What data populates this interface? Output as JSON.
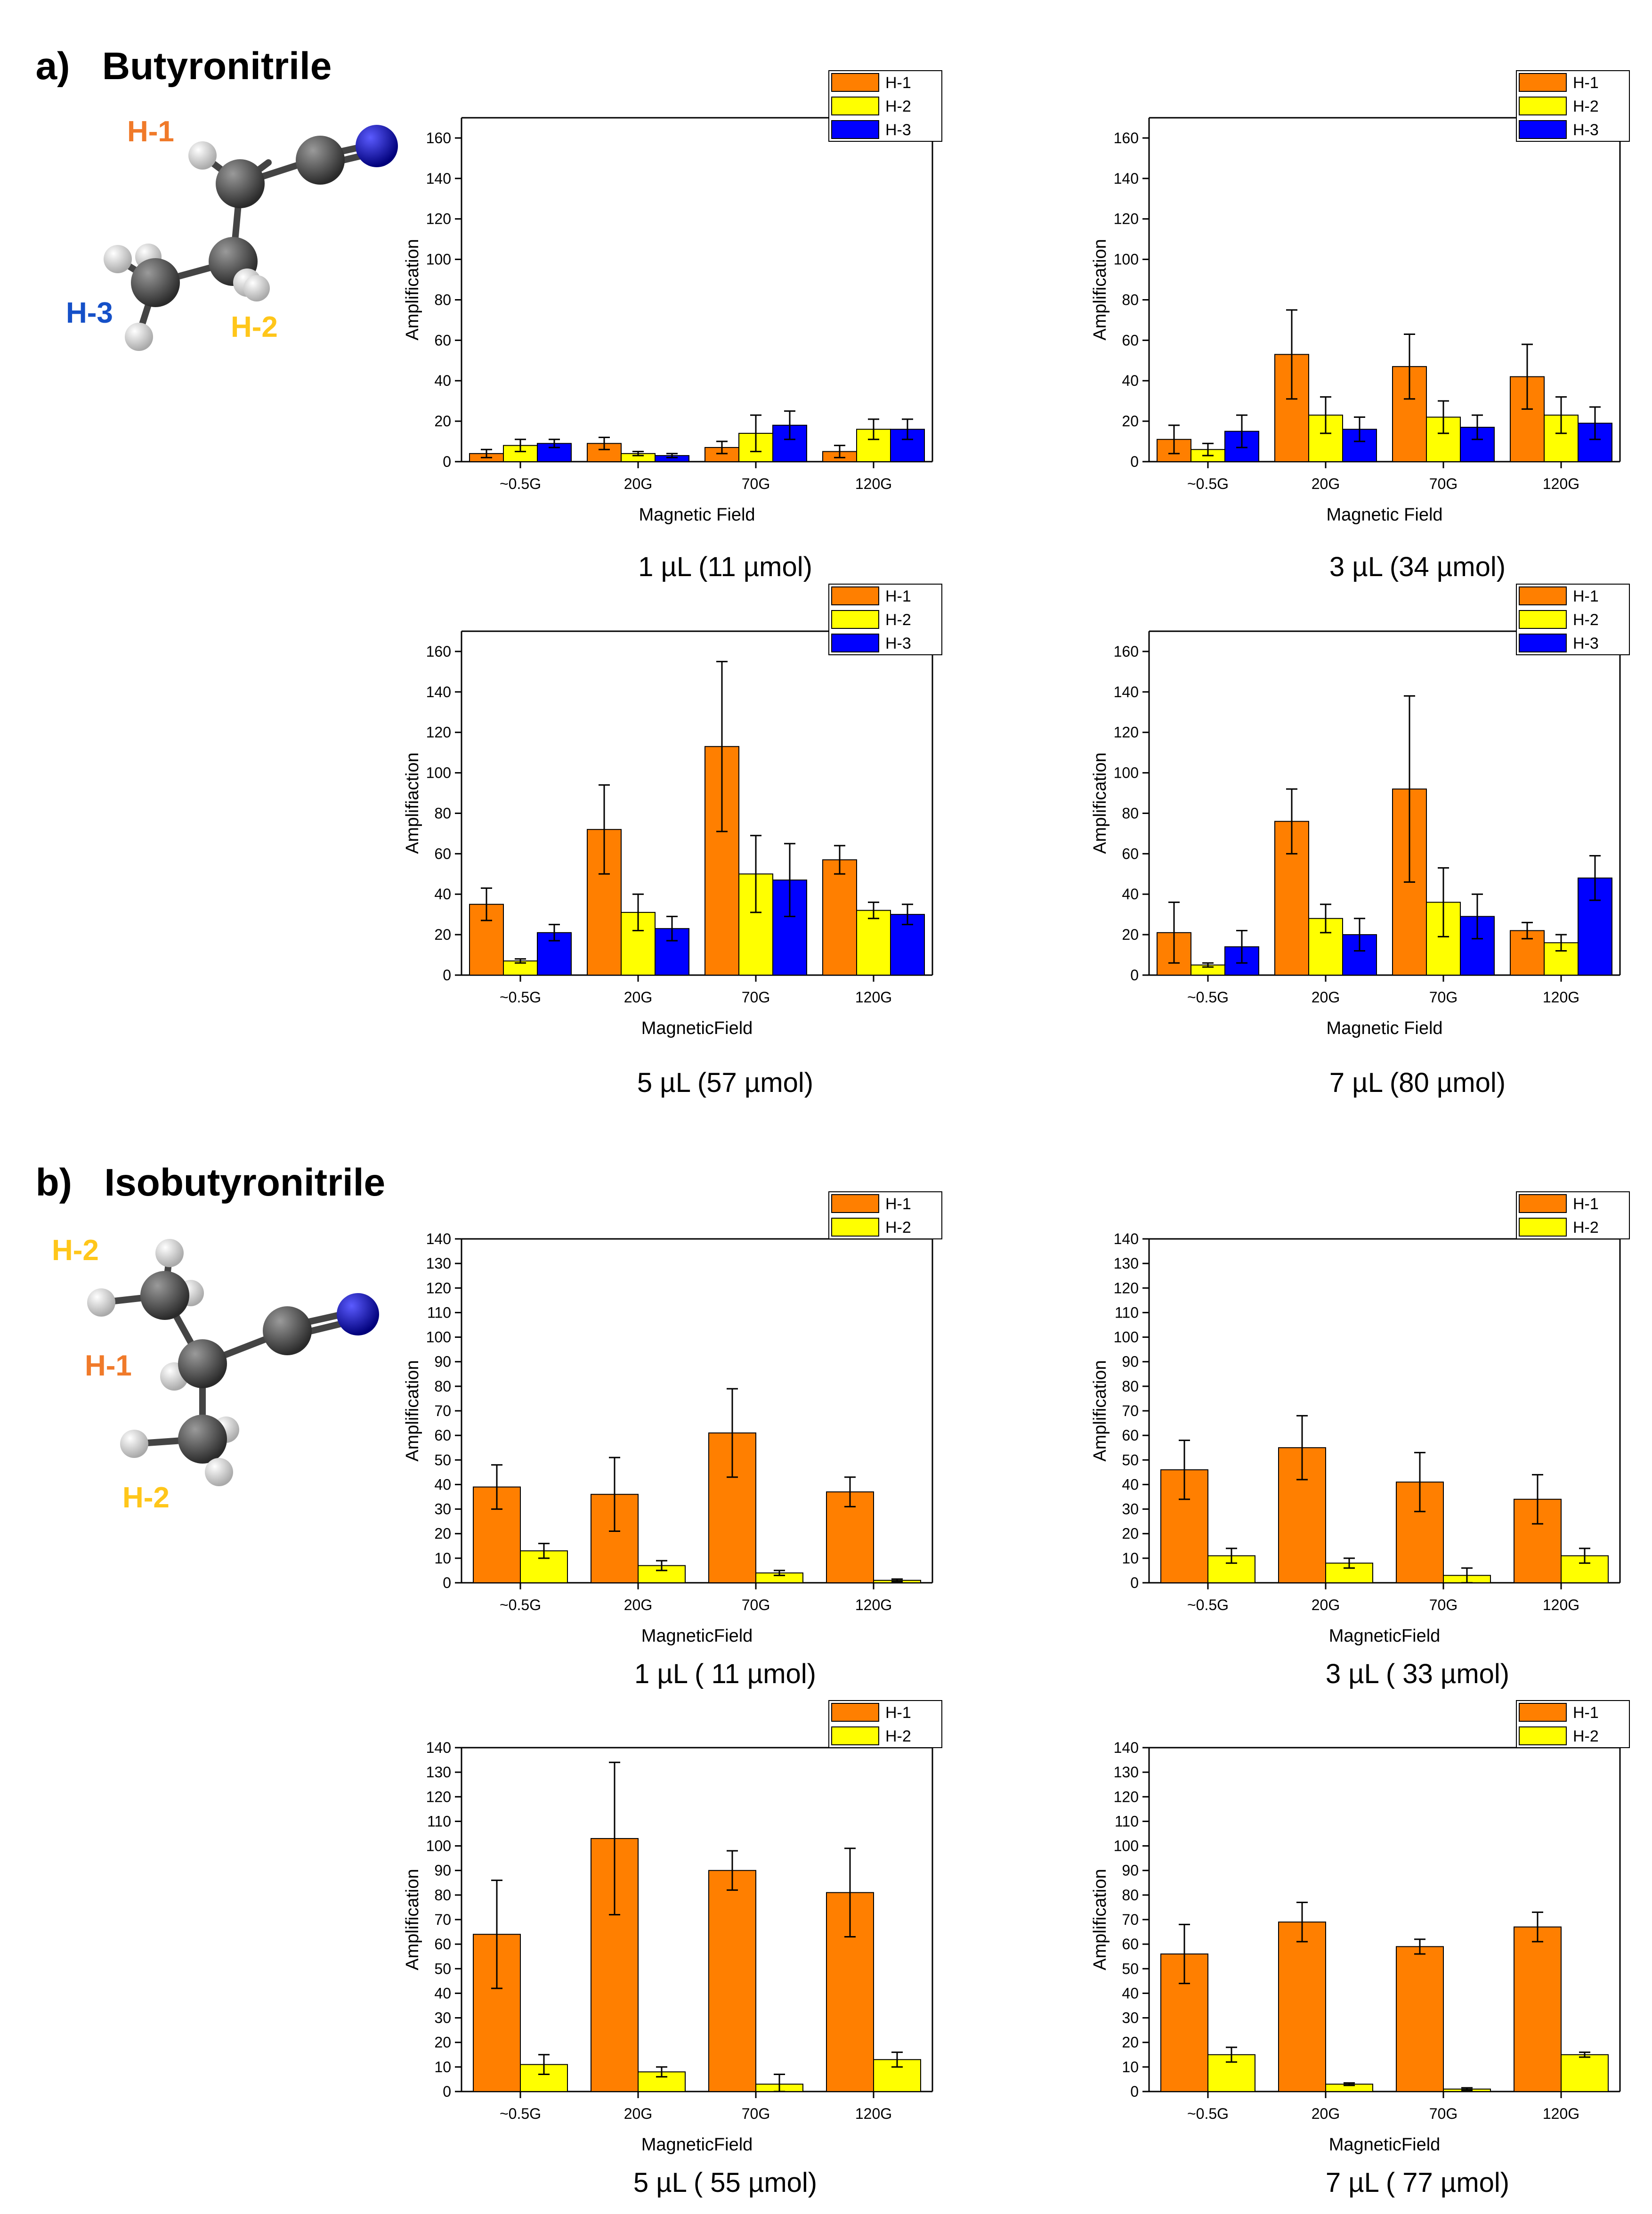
{
  "sections": {
    "a": {
      "label": "a)",
      "title": "Butyronitrile",
      "molecule_labels": {
        "h1": "H-1",
        "h2": "H-2",
        "h3": "H-3"
      }
    },
    "b": {
      "label": "b)",
      "title": "Isobutyronitrile",
      "molecule_labels": {
        "h1": "H-1",
        "h2_top": "H-2",
        "h2_bottom": "H-2"
      }
    }
  },
  "colors": {
    "h1": "#FF7F00",
    "h2": "#FFFF00",
    "h3": "#0000FF",
    "molecule_h1": "#F07A2A",
    "molecule_h2": "#FFC61A",
    "molecule_h3": "#1550C8"
  },
  "chart_data": [
    {
      "id": "a1",
      "type": "bar",
      "caption": "1 µL (11 µmol)",
      "xlabel": "Magnetic Field",
      "ylabel": "Amplification",
      "ylim": [
        0,
        170
      ],
      "yticks": [
        0,
        20,
        40,
        60,
        80,
        100,
        120,
        140,
        160
      ],
      "categories": [
        "~0.5G",
        "20G",
        "70G",
        "120G"
      ],
      "series": [
        {
          "name": "H-1",
          "color": "#FF7F00",
          "values": [
            4,
            9,
            7,
            5
          ],
          "errors": [
            2,
            3,
            3,
            3
          ]
        },
        {
          "name": "H-2",
          "color": "#FFFF00",
          "values": [
            8,
            4,
            14,
            16
          ],
          "errors": [
            3,
            1,
            9,
            5
          ]
        },
        {
          "name": "H-3",
          "color": "#0000FF",
          "values": [
            9,
            3,
            18,
            16
          ],
          "errors": [
            2,
            1,
            7,
            5
          ]
        }
      ]
    },
    {
      "id": "a2",
      "type": "bar",
      "caption": "3 µL (34 µmol)",
      "xlabel": "Magnetic Field",
      "ylabel": "Amplification",
      "ylim": [
        0,
        170
      ],
      "yticks": [
        0,
        20,
        40,
        60,
        80,
        100,
        120,
        140,
        160
      ],
      "categories": [
        "~0.5G",
        "20G",
        "70G",
        "120G"
      ],
      "series": [
        {
          "name": "H-1",
          "color": "#FF7F00",
          "values": [
            11,
            53,
            47,
            42
          ],
          "errors": [
            7,
            22,
            16,
            16
          ]
        },
        {
          "name": "H-2",
          "color": "#FFFF00",
          "values": [
            6,
            23,
            22,
            23
          ],
          "errors": [
            3,
            9,
            8,
            9
          ]
        },
        {
          "name": "H-3",
          "color": "#0000FF",
          "values": [
            15,
            16,
            17,
            19
          ],
          "errors": [
            8,
            6,
            6,
            8
          ]
        }
      ]
    },
    {
      "id": "a3",
      "type": "bar",
      "caption": "5 µL (57 µmol)",
      "xlabel": "MagneticField",
      "ylabel": "Amplifiaction",
      "ylim": [
        0,
        170
      ],
      "yticks": [
        0,
        20,
        40,
        60,
        80,
        100,
        120,
        140,
        160
      ],
      "categories": [
        "~0.5G",
        "20G",
        "70G",
        "120G"
      ],
      "series": [
        {
          "name": "H-1",
          "color": "#FF7F00",
          "values": [
            35,
            72,
            113,
            57
          ],
          "errors": [
            8,
            22,
            42,
            7
          ]
        },
        {
          "name": "H-2",
          "color": "#FFFF00",
          "values": [
            7,
            31,
            50,
            32
          ],
          "errors": [
            1,
            9,
            19,
            4
          ]
        },
        {
          "name": "H-3",
          "color": "#0000FF",
          "values": [
            21,
            23,
            47,
            30
          ],
          "errors": [
            4,
            6,
            18,
            5
          ]
        }
      ]
    },
    {
      "id": "a4",
      "type": "bar",
      "caption": "7 µL (80 µmol)",
      "xlabel": "Magnetic Field",
      "ylabel": "Amplification",
      "ylim": [
        0,
        170
      ],
      "yticks": [
        0,
        20,
        40,
        60,
        80,
        100,
        120,
        140,
        160
      ],
      "categories": [
        "~0.5G",
        "20G",
        "70G",
        "120G"
      ],
      "series": [
        {
          "name": "H-1",
          "color": "#FF7F00",
          "values": [
            21,
            76,
            92,
            22
          ],
          "errors": [
            15,
            16,
            46,
            4
          ]
        },
        {
          "name": "H-2",
          "color": "#FFFF00",
          "values": [
            5,
            28,
            36,
            16
          ],
          "errors": [
            1,
            7,
            17,
            4
          ]
        },
        {
          "name": "H-3",
          "color": "#0000FF",
          "values": [
            14,
            20,
            29,
            48
          ],
          "errors": [
            8,
            8,
            11,
            11
          ]
        }
      ]
    },
    {
      "id": "b1",
      "type": "bar",
      "caption": "1 µL ( 11 µmol)",
      "xlabel": "MagneticField",
      "ylabel": "Amplification",
      "ylim": [
        0,
        140
      ],
      "yticks": [
        0,
        10,
        20,
        30,
        40,
        50,
        60,
        70,
        80,
        90,
        100,
        110,
        120,
        130,
        140
      ],
      "categories": [
        "~0.5G",
        "20G",
        "70G",
        "120G"
      ],
      "series": [
        {
          "name": "H-1",
          "color": "#FF7F00",
          "values": [
            39,
            36,
            61,
            37
          ],
          "errors": [
            9,
            15,
            18,
            6
          ]
        },
        {
          "name": "H-2",
          "color": "#FFFF00",
          "values": [
            13,
            7,
            4,
            1
          ],
          "errors": [
            3,
            2,
            1,
            0.5
          ]
        }
      ]
    },
    {
      "id": "b2",
      "type": "bar",
      "caption": "3 µL ( 33 µmol)",
      "xlabel": "MagneticField",
      "ylabel": "Amplification",
      "ylim": [
        0,
        140
      ],
      "yticks": [
        0,
        10,
        20,
        30,
        40,
        50,
        60,
        70,
        80,
        90,
        100,
        110,
        120,
        130,
        140
      ],
      "categories": [
        "~0.5G",
        "20G",
        "70G",
        "120G"
      ],
      "series": [
        {
          "name": "H-1",
          "color": "#FF7F00",
          "values": [
            46,
            55,
            41,
            34
          ],
          "errors": [
            12,
            13,
            12,
            10
          ]
        },
        {
          "name": "H-2",
          "color": "#FFFF00",
          "values": [
            11,
            8,
            3,
            11
          ],
          "errors": [
            3,
            2,
            3,
            3
          ]
        }
      ]
    },
    {
      "id": "b3",
      "type": "bar",
      "caption": "5 µL ( 55 µmol)",
      "xlabel": "MagneticField",
      "ylabel": "Amplification",
      "ylim": [
        0,
        140
      ],
      "yticks": [
        0,
        10,
        20,
        30,
        40,
        50,
        60,
        70,
        80,
        90,
        100,
        110,
        120,
        130,
        140
      ],
      "categories": [
        "~0.5G",
        "20G",
        "70G",
        "120G"
      ],
      "series": [
        {
          "name": "H-1",
          "color": "#FF7F00",
          "values": [
            64,
            103,
            90,
            81
          ],
          "errors": [
            22,
            31,
            8,
            18
          ]
        },
        {
          "name": "H-2",
          "color": "#FFFF00",
          "values": [
            11,
            8,
            3,
            13
          ],
          "errors": [
            4,
            2,
            4,
            3
          ]
        }
      ]
    },
    {
      "id": "b4",
      "type": "bar",
      "caption": "7 µL ( 77 µmol)",
      "xlabel": "MagneticField",
      "ylabel": "Amplification",
      "ylim": [
        0,
        140
      ],
      "yticks": [
        0,
        10,
        20,
        30,
        40,
        50,
        60,
        70,
        80,
        90,
        100,
        110,
        120,
        130,
        140
      ],
      "categories": [
        "~0.5G",
        "20G",
        "70G",
        "120G"
      ],
      "series": [
        {
          "name": "H-1",
          "color": "#FF7F00",
          "values": [
            56,
            69,
            59,
            67
          ],
          "errors": [
            12,
            8,
            3,
            6
          ]
        },
        {
          "name": "H-2",
          "color": "#FFFF00",
          "values": [
            15,
            3,
            1,
            15
          ],
          "errors": [
            3,
            0.5,
            0.5,
            1
          ]
        }
      ]
    }
  ]
}
